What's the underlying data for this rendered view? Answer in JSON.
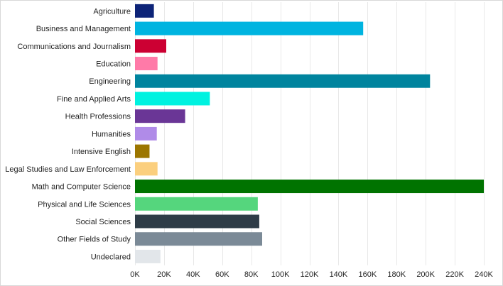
{
  "chart_data": {
    "type": "bar",
    "orientation": "horizontal",
    "title": "",
    "xlabel": "",
    "ylabel": "",
    "xlim": [
      0,
      240000
    ],
    "grid": true,
    "legend": "none",
    "categories": [
      "Agriculture",
      "Business and Management",
      "Communications and Journalism",
      "Education",
      "Engineering",
      "Fine and Applied Arts",
      "Health Professions",
      "Humanities",
      "Intensive English",
      "Legal Studies and Law Enforcement",
      "Math and Computer Science",
      "Physical and Life Sciences",
      "Social Sciences",
      "Other Fields of Study",
      "Undeclared"
    ],
    "values": [
      13000,
      157000,
      21500,
      15500,
      203000,
      51500,
      34500,
      15000,
      10000,
      15500,
      240000,
      84500,
      85500,
      87500,
      17500
    ],
    "colors": [
      "#0d2478",
      "#00b4e0",
      "#cc0033",
      "#ff7aa8",
      "#00849e",
      "#00f2e0",
      "#6a3696",
      "#b08be8",
      "#9c7600",
      "#fbcf7e",
      "#007300",
      "#55d67d",
      "#2e3c47",
      "#7b8a97",
      "#e2e6ea"
    ],
    "ticks": [
      0,
      20000,
      40000,
      60000,
      80000,
      100000,
      120000,
      140000,
      160000,
      180000,
      200000,
      220000,
      240000
    ],
    "tick_labels": [
      "0K",
      "20K",
      "40K",
      "60K",
      "80K",
      "100K",
      "120K",
      "140K",
      "160K",
      "180K",
      "200K",
      "220K",
      "240K"
    ],
    "grid_color": "#e8e8e8"
  }
}
